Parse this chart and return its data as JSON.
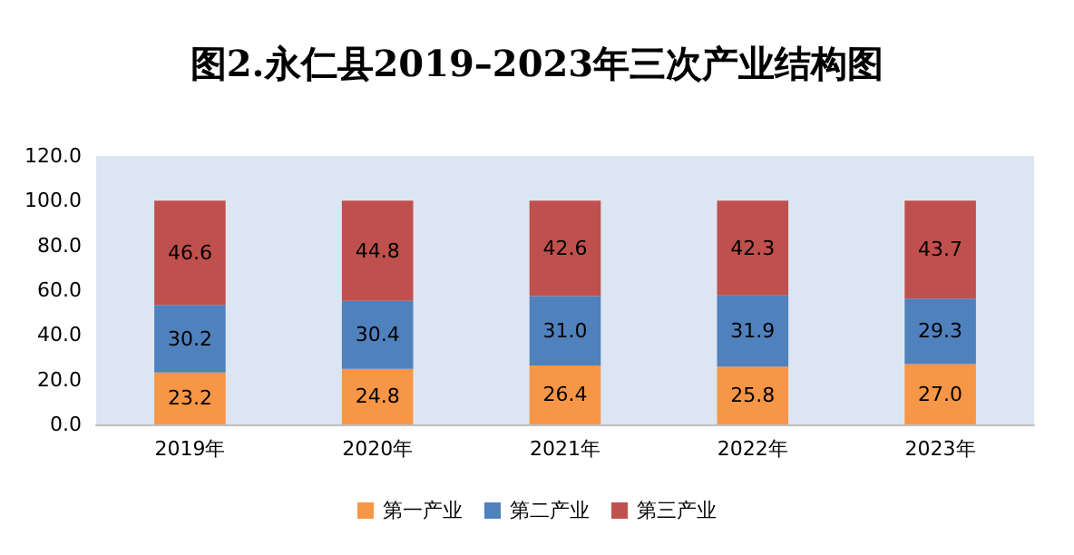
{
  "chart_data": {
    "type": "bar",
    "title": "图2.永仁县2019–2023年三次产业结构图",
    "stacked": true,
    "categories": [
      "2019年",
      "2020年",
      "2021年",
      "2022年",
      "2023年"
    ],
    "series": [
      {
        "name": "第一产业",
        "color": "#f79646",
        "values": [
          23.2,
          24.8,
          26.4,
          25.8,
          27.0
        ],
        "value_labels": [
          "23.2",
          "24.8",
          "26.4",
          "25.8",
          "27.0"
        ]
      },
      {
        "name": "第二产业",
        "color": "#4f81bd",
        "values": [
          30.2,
          30.4,
          31.0,
          31.9,
          29.3
        ],
        "value_labels": [
          "30.2",
          "30.4",
          "31.0",
          "31.9",
          "29.3"
        ]
      },
      {
        "name": "第三产业",
        "color": "#c0504d",
        "values": [
          46.6,
          44.8,
          42.6,
          42.3,
          43.7
        ],
        "value_labels": [
          "46.6",
          "44.8",
          "42.6",
          "42.3",
          "43.7"
        ]
      }
    ],
    "ylim": [
      0,
      120
    ],
    "yticks": [
      {
        "value": 0,
        "label": "0.0"
      },
      {
        "value": 20,
        "label": "20.0"
      },
      {
        "value": 40,
        "label": "40.0"
      },
      {
        "value": 60,
        "label": "60.0"
      },
      {
        "value": 80,
        "label": "80.0"
      },
      {
        "value": 100,
        "label": "100.0"
      },
      {
        "value": 120,
        "label": "120.0"
      }
    ],
    "grid": false,
    "legend": "bottom"
  }
}
